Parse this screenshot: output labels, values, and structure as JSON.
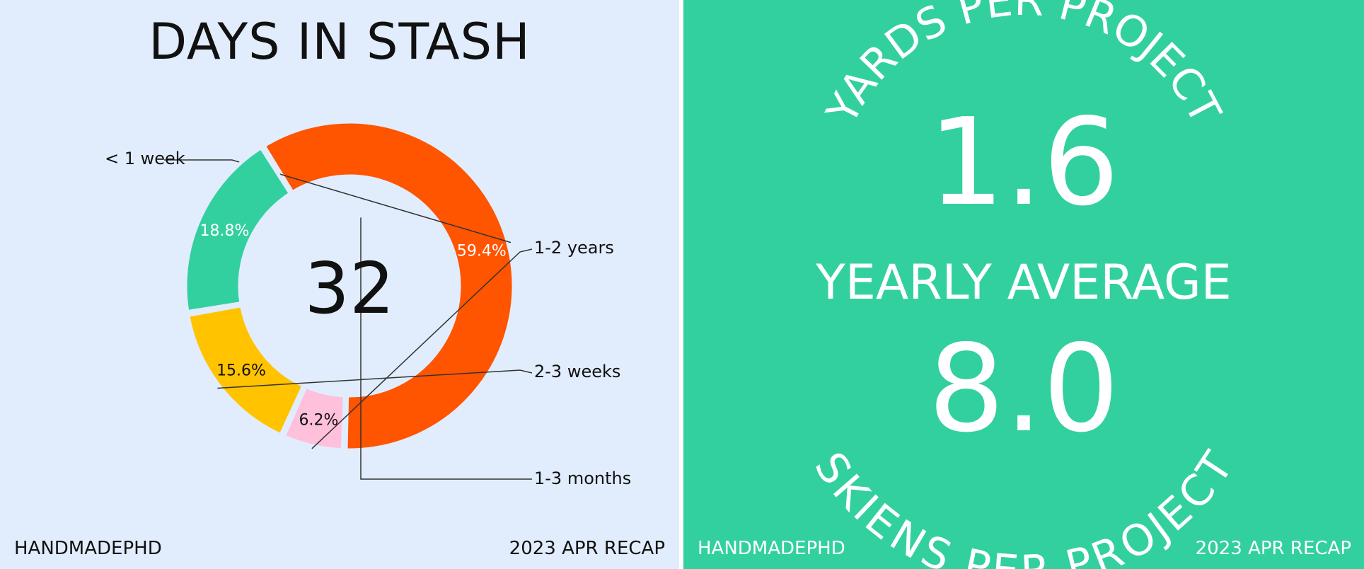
{
  "left": {
    "title": "DAYS IN STASH",
    "footer_left": "HANDMADEPHD",
    "footer_right": "2023 APR RECAP"
  },
  "right": {
    "top_arc_text": "YARDS PER PROJECT",
    "yards_value": "1.6",
    "middle_label": "YEARLY AVERAGE",
    "skeins_value": "8.0",
    "bottom_arc_text": "SKIENS PER PROJECT",
    "footer_left": "HANDMADEPHD",
    "footer_right": "2023 APR RECAP"
  },
  "chart_data": {
    "type": "pie",
    "style": "donut",
    "center_label": "32",
    "categories": [
      "< 1 week",
      "1-2 years",
      "2-3 weeks",
      "1-3 months"
    ],
    "values": [
      59.4,
      6.2,
      15.6,
      18.8
    ],
    "value_labels": [
      "59.4%",
      "6.2%",
      "15.6%",
      "18.8%"
    ],
    "colors": [
      "#ff5400",
      "#ffc0dc",
      "#ffc300",
      "#33d09f"
    ],
    "label_colors": [
      "#ffffff",
      "#111111",
      "#111111",
      "#ffffff"
    ],
    "start_angle_deg": -122,
    "legend": "none"
  }
}
